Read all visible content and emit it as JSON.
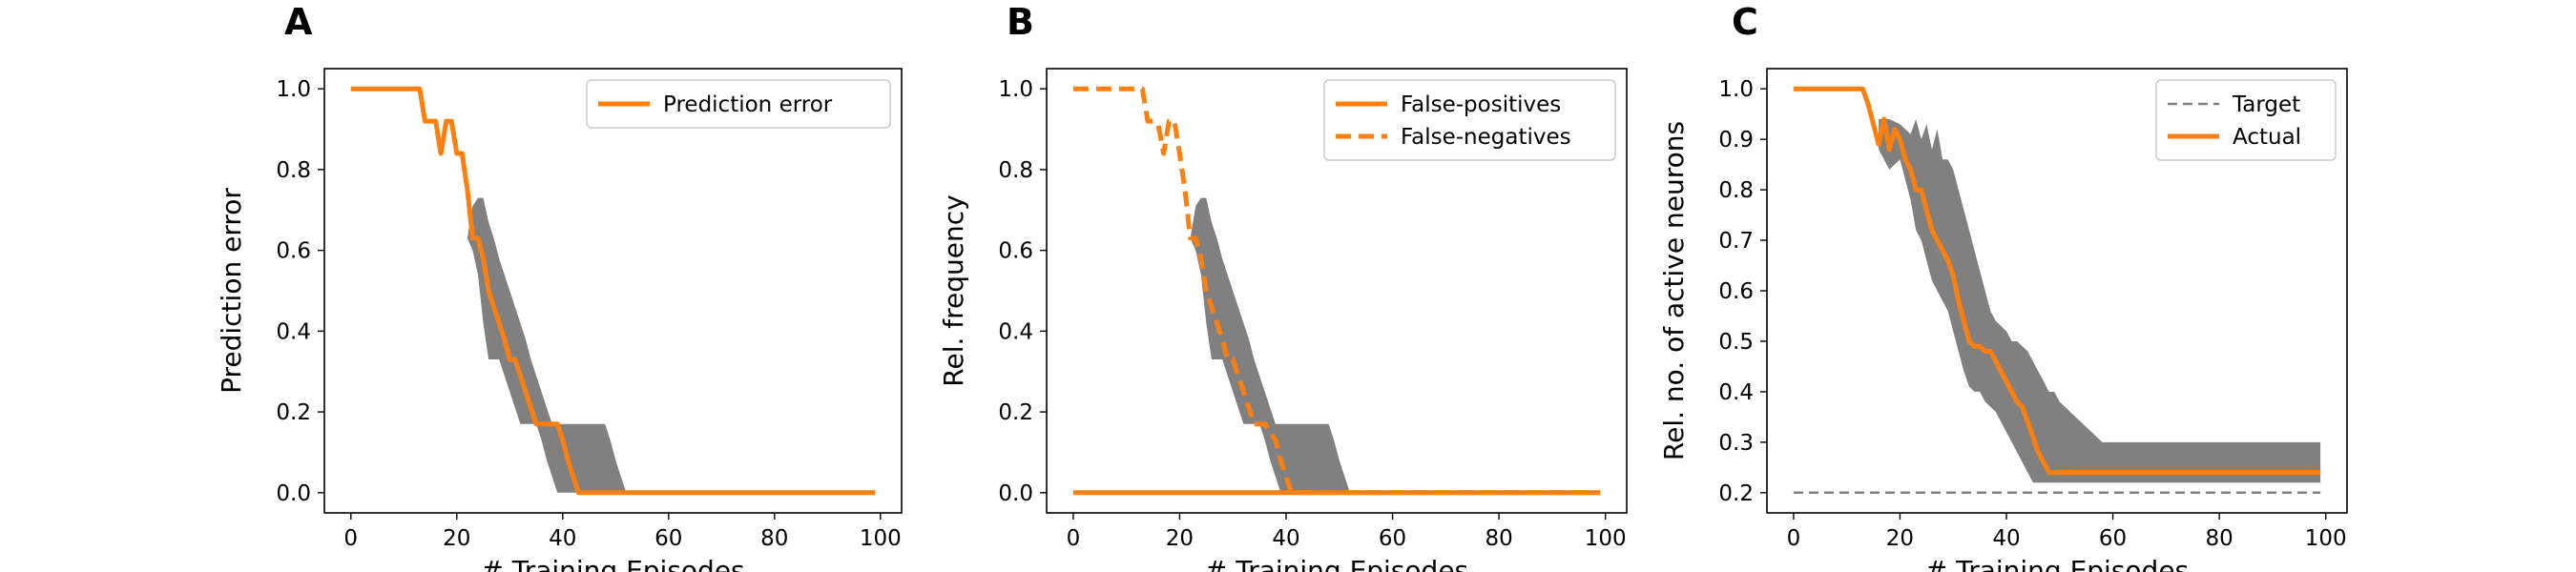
{
  "colors": {
    "actual": "#ff7f0e",
    "band": "#808080",
    "target": "#808080",
    "axis": "#000000"
  },
  "chart_data": [
    {
      "type": "line",
      "panel_label": "A",
      "xlabel": "# Training Episodes",
      "ylabel": "Prediction error",
      "xlim": [
        -5,
        104
      ],
      "ylim": [
        -0.05,
        1.05
      ],
      "xticks": [
        0,
        20,
        40,
        60,
        80,
        100
      ],
      "yticks": [
        0.0,
        0.2,
        0.4,
        0.6,
        0.8,
        1.0
      ],
      "ytick_labels": [
        "0.0",
        "0.2",
        "0.4",
        "0.6",
        "0.8",
        "1.0"
      ],
      "legend": {
        "position": "upper-right"
      },
      "series": [
        {
          "name": "Prediction error",
          "style": "solid",
          "x": [
            0,
            13,
            14,
            16,
            17,
            18,
            19,
            20,
            21,
            22,
            23,
            24,
            25,
            26,
            27,
            28,
            29,
            30,
            31,
            32,
            33,
            34,
            35,
            36,
            37,
            38,
            39,
            40,
            41,
            42,
            43,
            44,
            99
          ],
          "y": [
            1.0,
            1.0,
            0.92,
            0.92,
            0.84,
            0.92,
            0.92,
            0.84,
            0.84,
            0.75,
            0.63,
            0.63,
            0.58,
            0.5,
            0.46,
            0.42,
            0.38,
            0.33,
            0.33,
            0.29,
            0.25,
            0.21,
            0.17,
            0.17,
            0.17,
            0.17,
            0.17,
            0.13,
            0.08,
            0.04,
            0.0,
            0.0,
            0.0
          ]
        }
      ],
      "band": {
        "x": [
          22,
          23,
          24,
          25,
          26,
          27,
          28,
          29,
          30,
          31,
          32,
          33,
          34,
          35,
          36,
          37,
          38,
          39,
          40,
          41,
          42,
          43,
          44,
          45,
          46,
          47,
          48,
          49,
          50,
          51,
          52
        ],
        "upper": [
          0.63,
          0.71,
          0.73,
          0.73,
          0.67,
          0.63,
          0.58,
          0.54,
          0.5,
          0.46,
          0.42,
          0.38,
          0.33,
          0.29,
          0.25,
          0.21,
          0.17,
          0.17,
          0.17,
          0.17,
          0.17,
          0.17,
          0.17,
          0.17,
          0.17,
          0.17,
          0.17,
          0.13,
          0.08,
          0.04,
          0.0
        ],
        "lower": [
          0.63,
          0.6,
          0.54,
          0.42,
          0.33,
          0.33,
          0.33,
          0.29,
          0.25,
          0.21,
          0.17,
          0.17,
          0.17,
          0.17,
          0.13,
          0.08,
          0.04,
          0.0,
          0.0,
          0.0,
          0.0,
          0.0,
          0.0,
          0.0,
          0.0,
          0.0,
          0.0,
          0.0,
          0.0,
          0.0,
          0.0
        ]
      }
    },
    {
      "type": "line",
      "panel_label": "B",
      "xlabel": "# Training Episodes",
      "ylabel": "Rel. frequency",
      "xlim": [
        -5,
        104
      ],
      "ylim": [
        -0.05,
        1.05
      ],
      "xticks": [
        0,
        20,
        40,
        60,
        80,
        100
      ],
      "yticks": [
        0.0,
        0.2,
        0.4,
        0.6,
        0.8,
        1.0
      ],
      "ytick_labels": [
        "0.0",
        "0.2",
        "0.4",
        "0.6",
        "0.8",
        "1.0"
      ],
      "legend": {
        "position": "upper-right"
      },
      "series": [
        {
          "name": "False-positives",
          "style": "solid",
          "x": [
            0,
            99
          ],
          "y": [
            0.0,
            0.0
          ]
        },
        {
          "name": "False-negatives",
          "style": "dashed",
          "x": [
            0,
            12,
            13,
            14,
            15,
            16,
            17,
            18,
            19,
            20,
            21,
            22,
            23,
            24,
            25,
            26,
            27,
            28,
            29,
            30,
            31,
            32,
            33,
            34,
            35,
            36,
            37,
            38,
            39,
            40,
            41,
            42,
            99
          ],
          "y": [
            1.0,
            1.0,
            1.0,
            0.92,
            0.92,
            0.91,
            0.84,
            0.92,
            0.92,
            0.84,
            0.75,
            0.63,
            0.63,
            0.58,
            0.5,
            0.46,
            0.42,
            0.38,
            0.33,
            0.33,
            0.29,
            0.25,
            0.21,
            0.17,
            0.17,
            0.17,
            0.15,
            0.13,
            0.08,
            0.04,
            0.0,
            0.0,
            0.0
          ]
        }
      ],
      "band": {
        "x": [
          22,
          23,
          24,
          25,
          26,
          27,
          28,
          29,
          30,
          31,
          32,
          33,
          34,
          35,
          36,
          37,
          38,
          39,
          40,
          41,
          42,
          43,
          44,
          45,
          46,
          47,
          48,
          49,
          50,
          51,
          52
        ],
        "upper": [
          0.63,
          0.71,
          0.73,
          0.73,
          0.67,
          0.63,
          0.58,
          0.54,
          0.5,
          0.46,
          0.42,
          0.38,
          0.33,
          0.29,
          0.25,
          0.21,
          0.17,
          0.17,
          0.17,
          0.17,
          0.17,
          0.17,
          0.17,
          0.17,
          0.17,
          0.17,
          0.17,
          0.13,
          0.08,
          0.04,
          0.0
        ],
        "lower": [
          0.63,
          0.6,
          0.54,
          0.42,
          0.33,
          0.33,
          0.33,
          0.29,
          0.25,
          0.21,
          0.17,
          0.17,
          0.17,
          0.17,
          0.13,
          0.08,
          0.04,
          0.0,
          0.0,
          0.0,
          0.0,
          0.0,
          0.0,
          0.0,
          0.0,
          0.0,
          0.0,
          0.0,
          0.0,
          0.0,
          0.0
        ]
      }
    },
    {
      "type": "line",
      "panel_label": "C",
      "xlabel": "# Training Episodes",
      "ylabel": "Rel. no. of active neurons",
      "xlim": [
        -5,
        104
      ],
      "ylim": [
        0.16,
        1.04
      ],
      "xticks": [
        0,
        20,
        40,
        60,
        80,
        100
      ],
      "yticks": [
        0.2,
        0.3,
        0.4,
        0.5,
        0.6,
        0.7,
        0.8,
        0.9,
        1.0
      ],
      "ytick_labels": [
        "0.2",
        "0.3",
        "0.4",
        "0.5",
        "0.6",
        "0.7",
        "0.8",
        "0.9",
        "1.0"
      ],
      "legend": {
        "position": "upper-right"
      },
      "series": [
        {
          "name": "Target",
          "style": "dashed",
          "x": [
            0,
            99
          ],
          "y": [
            0.2,
            0.2
          ]
        },
        {
          "name": "Actual",
          "style": "solid",
          "x": [
            0,
            13,
            14,
            15,
            16,
            17,
            18,
            19,
            20,
            21,
            22,
            23,
            24,
            25,
            26,
            27,
            28,
            29,
            30,
            31,
            32,
            33,
            34,
            35,
            36,
            37,
            38,
            39,
            40,
            41,
            42,
            43,
            44,
            45,
            46,
            47,
            48,
            49,
            50,
            51,
            52,
            60,
            70,
            80,
            90,
            99
          ],
          "y": [
            1.0,
            1.0,
            0.97,
            0.93,
            0.89,
            0.94,
            0.88,
            0.92,
            0.9,
            0.86,
            0.84,
            0.8,
            0.8,
            0.76,
            0.72,
            0.7,
            0.68,
            0.66,
            0.63,
            0.58,
            0.54,
            0.5,
            0.49,
            0.49,
            0.48,
            0.48,
            0.46,
            0.44,
            0.42,
            0.4,
            0.38,
            0.37,
            0.34,
            0.31,
            0.28,
            0.26,
            0.24,
            0.24,
            0.24,
            0.24,
            0.24,
            0.24,
            0.24,
            0.24,
            0.24,
            0.24
          ]
        }
      ],
      "band": {
        "x": [
          16,
          18,
          20,
          21,
          22,
          23,
          24,
          25,
          26,
          27,
          28,
          29,
          30,
          31,
          32,
          33,
          34,
          35,
          36,
          37,
          38,
          39,
          40,
          41,
          42,
          43,
          44,
          45,
          46,
          47,
          48,
          49,
          50,
          52,
          54,
          56,
          58,
          60,
          70,
          80,
          90,
          99
        ],
        "upper": [
          0.94,
          0.94,
          0.93,
          0.92,
          0.91,
          0.94,
          0.9,
          0.93,
          0.88,
          0.92,
          0.86,
          0.86,
          0.84,
          0.8,
          0.76,
          0.72,
          0.68,
          0.64,
          0.6,
          0.56,
          0.54,
          0.53,
          0.52,
          0.5,
          0.5,
          0.49,
          0.48,
          0.46,
          0.44,
          0.42,
          0.4,
          0.4,
          0.38,
          0.36,
          0.34,
          0.32,
          0.3,
          0.3,
          0.3,
          0.3,
          0.3,
          0.3
        ],
        "lower": [
          0.88,
          0.84,
          0.86,
          0.82,
          0.78,
          0.72,
          0.7,
          0.66,
          0.62,
          0.6,
          0.58,
          0.56,
          0.52,
          0.48,
          0.44,
          0.41,
          0.4,
          0.4,
          0.38,
          0.37,
          0.36,
          0.34,
          0.32,
          0.3,
          0.28,
          0.26,
          0.24,
          0.22,
          0.22,
          0.22,
          0.22,
          0.22,
          0.22,
          0.22,
          0.22,
          0.22,
          0.22,
          0.22,
          0.22,
          0.22,
          0.22,
          0.22
        ]
      }
    }
  ]
}
